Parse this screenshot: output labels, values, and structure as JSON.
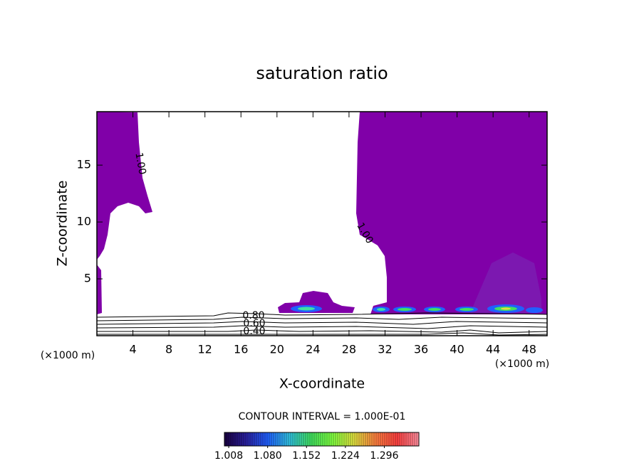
{
  "chart_data": {
    "type": "contour",
    "title": "saturation ratio",
    "x_label": "X-coordinate",
    "y_label": "Z-coordinate",
    "x_unit": "(×1000 m)",
    "y_unit": "(×1000 m)",
    "xlim": [
      0,
      50
    ],
    "xticks": [
      4,
      8,
      12,
      16,
      20,
      24,
      28,
      32,
      36,
      40,
      44,
      48
    ],
    "ylim": [
      0,
      19.7
    ],
    "yticks": [
      5,
      10,
      15
    ],
    "contour_levels": [
      1.0,
      1.0,
      0.8,
      0.6,
      0.4
    ],
    "contour_level_labels": [
      "1.00",
      "1.00",
      "0.80",
      "0.60",
      "0.40"
    ],
    "fill_color": "#8000a8",
    "contour_interval": "CONTOUR INTERVAL = 1.000E-01",
    "colorbar": {
      "clim": [
        1.0,
        1.36
      ],
      "colors": [
        "#1a0040",
        "#2a20a0",
        "#2060ff",
        "#30c0e0",
        "#40e060",
        "#80ff40",
        "#e0e040",
        "#ff8040",
        "#ff4040",
        "#ff90a0"
      ],
      "ticks": [
        {
          "value": 1.008,
          "label": "1.008"
        },
        {
          "value": 1.08,
          "label": "1.080"
        },
        {
          "value": 1.152,
          "label": "1.152"
        },
        {
          "value": 1.224,
          "label": "1.224"
        },
        {
          "value": 1.296,
          "label": "1.296"
        }
      ]
    }
  }
}
